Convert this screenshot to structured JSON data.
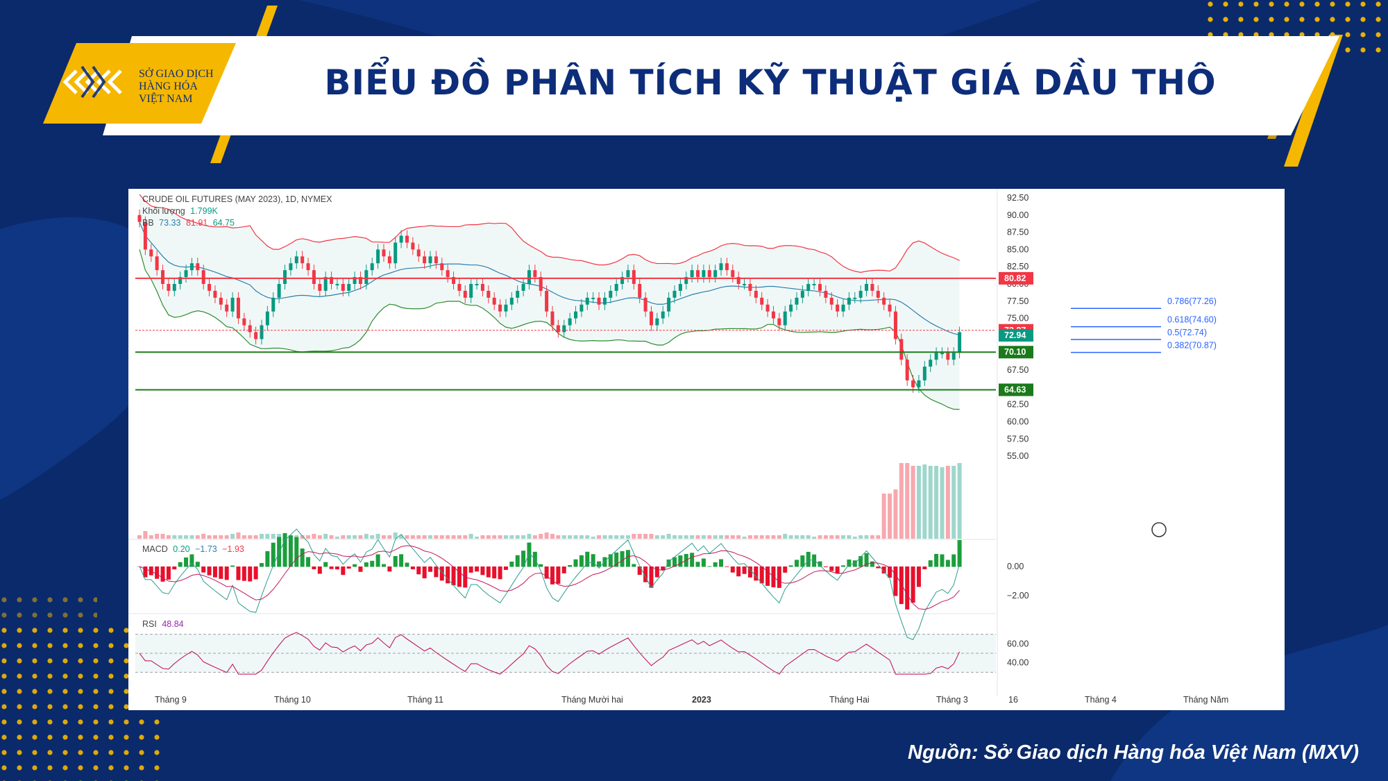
{
  "page": {
    "title": "BIỂU ĐỒ PHÂN TÍCH KỸ THUẬT GIÁ DẦU THÔ",
    "logo_lines": [
      "SỞ GIAO DỊCH",
      "HÀNG HÓA",
      "VIỆT NAM"
    ],
    "source": "Nguồn: Sở Giao dịch Hàng hóa Việt Nam (MXV)"
  },
  "colors": {
    "up": "#089981",
    "down": "#f23645",
    "accent_yellow": "#f5b700",
    "navy": "#0b2a6b",
    "fib": "#2962ff"
  },
  "chart_data": {
    "type": "candlestick",
    "instrument": "CRUDE OIL FUTURES (MAY 2023), 1D, NYMEX",
    "volume": {
      "label": "Khối lượng",
      "value": "1.799K"
    },
    "bb": {
      "label": "BB",
      "values": [
        "73.33",
        "81.91",
        "64.75"
      ]
    },
    "macd": {
      "label": "MACD",
      "values": [
        "0.20",
        "−1.73",
        "−1.93"
      ]
    },
    "rsi": {
      "label": "RSI",
      "value": "48.84"
    },
    "x_labels": [
      "Tháng 9",
      "Tháng 10",
      "Tháng 11",
      "Tháng Mười hai",
      "2023",
      "Tháng Hai",
      "Tháng 3",
      "16",
      "Tháng 4",
      "Tháng Năm"
    ],
    "price_axis": [
      "92.50",
      "90.00",
      "87.50",
      "85.00",
      "82.50",
      "80.00",
      "77.50",
      "75.00",
      "72.50",
      "70.00",
      "67.50",
      "65.00",
      "62.50",
      "60.00",
      "57.50",
      "55.00"
    ],
    "ylim": [
      54,
      93
    ],
    "macd_axis": [
      "0.00",
      "−2.00"
    ],
    "rsi_axis": [
      "60.00",
      "40.00"
    ],
    "horizontal_levels": [
      {
        "value": 80.82,
        "label": "80.82",
        "color": "#f23645"
      },
      {
        "value": 73.27,
        "label": "73.27",
        "color": "#f23645"
      },
      {
        "value": 70.1,
        "label": "70.10",
        "color": "#1b7a1b"
      },
      {
        "value": 64.63,
        "label": "64.63",
        "color": "#1b7a1b"
      }
    ],
    "last_price": {
      "value": 72.94,
      "label": "72.94"
    },
    "fibonacci": [
      {
        "value": 77.26,
        "label": "0.786(77.26)"
      },
      {
        "value": 74.6,
        "label": "0.618(74.60)"
      },
      {
        "value": 72.74,
        "label": "0.5(72.74)"
      },
      {
        "value": 70.87,
        "label": "0.382(70.87)"
      }
    ],
    "close": [
      89,
      85,
      84,
      82,
      80,
      79,
      80,
      81,
      82,
      83,
      82,
      80,
      79,
      78,
      77,
      76,
      78,
      75,
      74,
      73,
      72,
      74,
      76,
      78,
      80,
      82,
      83,
      84,
      83,
      82,
      80,
      79,
      81,
      80,
      80,
      79,
      80,
      81,
      80,
      82,
      83,
      85,
      84,
      83,
      86,
      87,
      86,
      85,
      84,
      83,
      84,
      83,
      82,
      81,
      80,
      79,
      78,
      80,
      80,
      79,
      78,
      77,
      76,
      77,
      78,
      79,
      80,
      82,
      81,
      79,
      76,
      74,
      73,
      74,
      75,
      76,
      77,
      78,
      78,
      77,
      78,
      79,
      80,
      81,
      82,
      80,
      78,
      76,
      74,
      75,
      76,
      78,
      79,
      80,
      81,
      82,
      81,
      82,
      81,
      82,
      83,
      82,
      81,
      80,
      80,
      79,
      78,
      77,
      76,
      75,
      74,
      76,
      77,
      78,
      79,
      80,
      80,
      79,
      78,
      77,
      76,
      77,
      78,
      78,
      79,
      80,
      79,
      78,
      77,
      76,
      72,
      69,
      66,
      65,
      66,
      68,
      69,
      70,
      70,
      69,
      70,
      73
    ]
  }
}
